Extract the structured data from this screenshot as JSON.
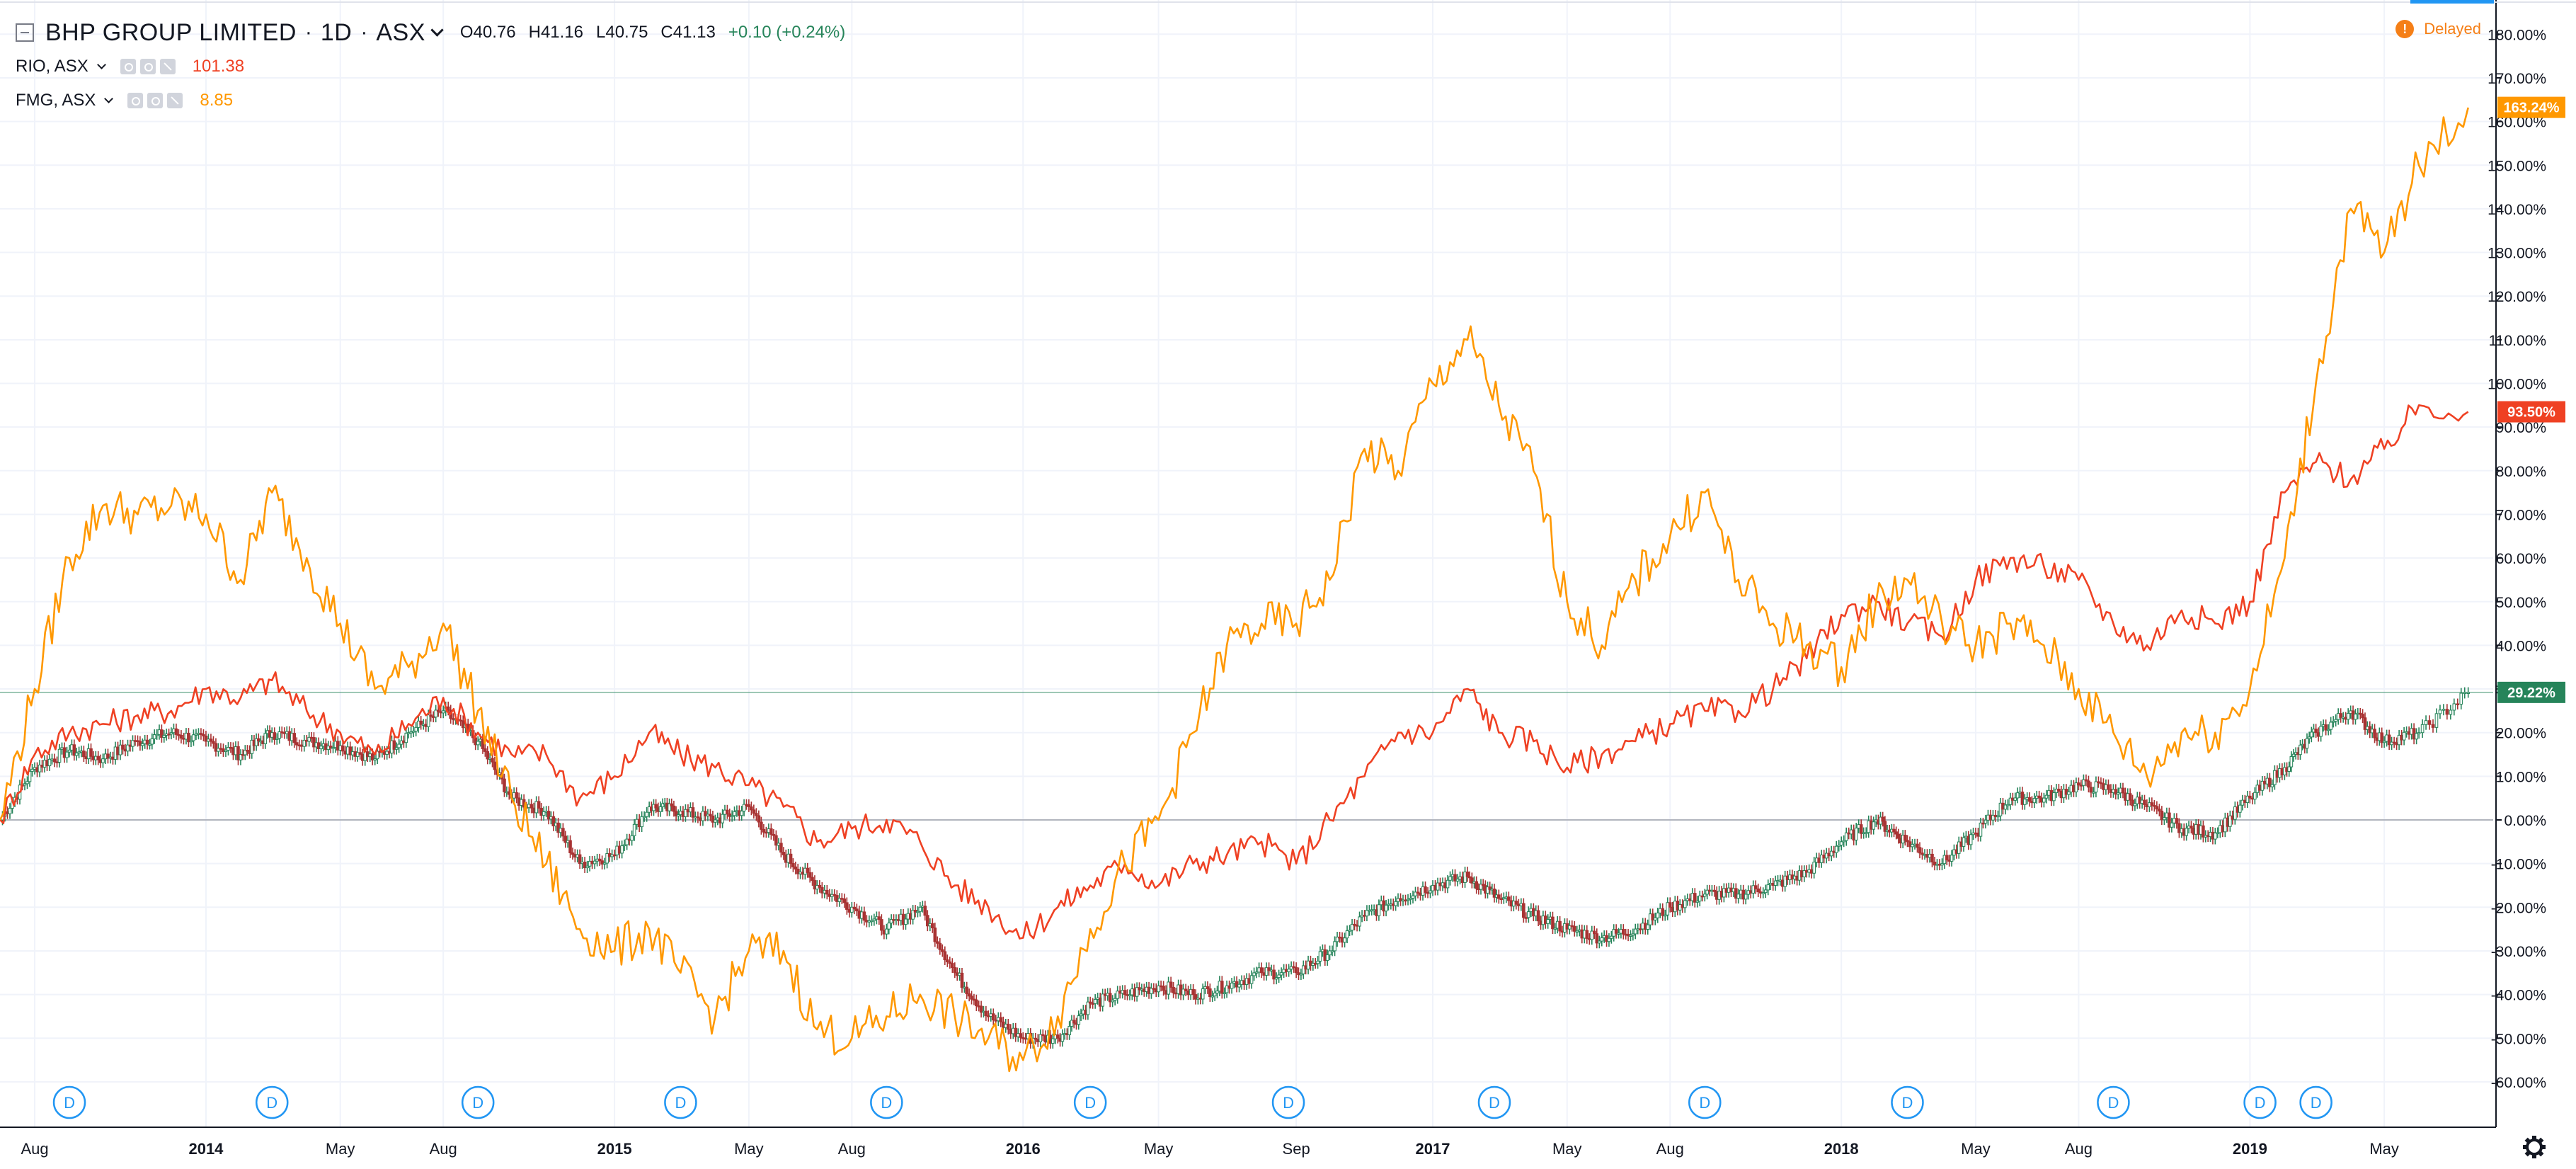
{
  "header": {
    "symbol_title": "BHP GROUP LIMITED",
    "interval": "1D",
    "exchange": "ASX",
    "open": "O40.76",
    "high": "H41.16",
    "low": "L40.75",
    "close": "C41.13",
    "change": "+0.10 (+0.24%)"
  },
  "comparisons": [
    {
      "label": "RIO, ASX",
      "value": "101.38",
      "color": "#ef4123"
    },
    {
      "label": "FMG, ASX",
      "value": "8.85",
      "color": "#ff9800"
    }
  ],
  "status": {
    "delayed_label": "Delayed",
    "delayed_icon": "!"
  },
  "colors": {
    "bhp": "#26845a",
    "bhp_down": "#a83232",
    "rio": "#ef4123",
    "fmg": "#ff9800",
    "event_marker": "#2196f3",
    "grid": "#f0f3fa"
  },
  "event_marker_label": "D",
  "chart_data": {
    "type": "line",
    "y_axis": {
      "unit": "%",
      "range": [
        -65,
        185
      ],
      "ticks": [
        "180.00%",
        "170.00%",
        "160.00%",
        "150.00%",
        "140.00%",
        "130.00%",
        "120.00%",
        "110.00%",
        "100.00%",
        "90.00%",
        "80.00%",
        "70.00%",
        "60.00%",
        "50.00%",
        "40.00%",
        "30.00%",
        "20.00%",
        "10.00%",
        "0.00%",
        "-10.00%",
        "-20.00%",
        "-30.00%",
        "-40.00%",
        "-50.00%",
        "-60.00%"
      ]
    },
    "x_axis": {
      "range": [
        "2013-07-01",
        "2019-07-31"
      ],
      "ticks": [
        {
          "date": "2013-08-01",
          "label": "Aug"
        },
        {
          "date": "2014-01-01",
          "label": "2014"
        },
        {
          "date": "2014-05-01",
          "label": "May"
        },
        {
          "date": "2014-08-01",
          "label": "Aug"
        },
        {
          "date": "2015-01-01",
          "label": "2015"
        },
        {
          "date": "2015-05-01",
          "label": "May"
        },
        {
          "date": "2015-08-01",
          "label": "Aug"
        },
        {
          "date": "2016-01-01",
          "label": "2016"
        },
        {
          "date": "2016-05-01",
          "label": "May"
        },
        {
          "date": "2016-09-01",
          "label": "Sep"
        },
        {
          "date": "2017-01-01",
          "label": "2017"
        },
        {
          "date": "2017-05-01",
          "label": "May"
        },
        {
          "date": "2017-08-01",
          "label": "Aug"
        },
        {
          "date": "2018-01-01",
          "label": "2018"
        },
        {
          "date": "2018-05-01",
          "label": "May"
        },
        {
          "date": "2018-08-01",
          "label": "Aug"
        },
        {
          "date": "2019-01-01",
          "label": "2019"
        },
        {
          "date": "2019-05-01",
          "label": "May"
        }
      ]
    },
    "grid": true,
    "legend": "top-left",
    "zero_line": 0,
    "series": [
      {
        "name": "BHP GROUP LIMITED",
        "style": "candles",
        "last_label": "29.22%",
        "last_value": 29.22,
        "points": [
          [
            "2013-07-01",
            0
          ],
          [
            "2013-08-01",
            12
          ],
          [
            "2013-09-01",
            16
          ],
          [
            "2013-10-01",
            14
          ],
          [
            "2013-11-01",
            18
          ],
          [
            "2013-12-01",
            20
          ],
          [
            "2014-01-01",
            18
          ],
          [
            "2014-02-01",
            15
          ],
          [
            "2014-03-01",
            20
          ],
          [
            "2014-04-01",
            18
          ],
          [
            "2014-05-01",
            17
          ],
          [
            "2014-06-01",
            14
          ],
          [
            "2014-07-01",
            20
          ],
          [
            "2014-08-01",
            25
          ],
          [
            "2014-09-01",
            18
          ],
          [
            "2014-10-01",
            5
          ],
          [
            "2014-11-01",
            2
          ],
          [
            "2014-12-01",
            -10
          ],
          [
            "2015-01-01",
            -8
          ],
          [
            "2015-02-01",
            3
          ],
          [
            "2015-03-01",
            2
          ],
          [
            "2015-04-01",
            0
          ],
          [
            "2015-05-01",
            3
          ],
          [
            "2015-06-01",
            -8
          ],
          [
            "2015-07-01",
            -15
          ],
          [
            "2015-08-01",
            -20
          ],
          [
            "2015-09-01",
            -25
          ],
          [
            "2015-10-01",
            -20
          ],
          [
            "2015-11-01",
            -35
          ],
          [
            "2015-12-01",
            -45
          ],
          [
            "2016-01-01",
            -50
          ],
          [
            "2016-02-01",
            -50
          ],
          [
            "2016-03-01",
            -42
          ],
          [
            "2016-04-01",
            -40
          ],
          [
            "2016-05-01",
            -38
          ],
          [
            "2016-06-01",
            -40
          ],
          [
            "2016-07-01",
            -38
          ],
          [
            "2016-08-01",
            -35
          ],
          [
            "2016-09-01",
            -35
          ],
          [
            "2016-10-01",
            -30
          ],
          [
            "2016-11-01",
            -22
          ],
          [
            "2016-12-01",
            -18
          ],
          [
            "2017-01-01",
            -15
          ],
          [
            "2017-02-01",
            -13
          ],
          [
            "2017-03-01",
            -18
          ],
          [
            "2017-04-01",
            -22
          ],
          [
            "2017-05-01",
            -25
          ],
          [
            "2017-06-01",
            -27
          ],
          [
            "2017-07-01",
            -25
          ],
          [
            "2017-08-01",
            -20
          ],
          [
            "2017-09-01",
            -17
          ],
          [
            "2017-10-01",
            -17
          ],
          [
            "2017-11-01",
            -15
          ],
          [
            "2017-12-01",
            -12
          ],
          [
            "2018-01-01",
            -5
          ],
          [
            "2018-02-01",
            0
          ],
          [
            "2018-03-01",
            -5
          ],
          [
            "2018-04-01",
            -10
          ],
          [
            "2018-05-01",
            -3
          ],
          [
            "2018-06-01",
            5
          ],
          [
            "2018-07-01",
            5
          ],
          [
            "2018-08-01",
            8
          ],
          [
            "2018-09-01",
            7
          ],
          [
            "2018-10-01",
            3
          ],
          [
            "2018-11-01",
            -2
          ],
          [
            "2018-12-01",
            -3
          ],
          [
            "2019-01-01",
            5
          ],
          [
            "2019-02-01",
            12
          ],
          [
            "2019-03-01",
            20
          ],
          [
            "2019-04-01",
            25
          ],
          [
            "2019-05-01",
            18
          ],
          [
            "2019-06-01",
            20
          ],
          [
            "2019-07-15",
            29.2
          ]
        ]
      },
      {
        "name": "RIO, ASX",
        "style": "line",
        "last_label": "93.50%",
        "last_value": 93.5,
        "points": [
          [
            "2013-07-01",
            0
          ],
          [
            "2013-08-01",
            15
          ],
          [
            "2013-09-01",
            20
          ],
          [
            "2013-10-01",
            22
          ],
          [
            "2013-11-01",
            24
          ],
          [
            "2013-12-01",
            25
          ],
          [
            "2014-01-01",
            30
          ],
          [
            "2014-02-01",
            28
          ],
          [
            "2014-03-01",
            32
          ],
          [
            "2014-04-01",
            25
          ],
          [
            "2014-05-01",
            20
          ],
          [
            "2014-06-01",
            15
          ],
          [
            "2014-07-01",
            22
          ],
          [
            "2014-08-01",
            28
          ],
          [
            "2014-09-01",
            20
          ],
          [
            "2014-10-01",
            15
          ],
          [
            "2014-11-01",
            15
          ],
          [
            "2014-12-01",
            5
          ],
          [
            "2015-01-01",
            10
          ],
          [
            "2015-02-01",
            20
          ],
          [
            "2015-03-01",
            15
          ],
          [
            "2015-04-01",
            12
          ],
          [
            "2015-05-01",
            8
          ],
          [
            "2015-06-01",
            3
          ],
          [
            "2015-07-01",
            -5
          ],
          [
            "2015-08-01",
            -2
          ],
          [
            "2015-09-01",
            0
          ],
          [
            "2015-10-01",
            -5
          ],
          [
            "2015-11-01",
            -15
          ],
          [
            "2015-12-01",
            -20
          ],
          [
            "2016-01-01",
            -27
          ],
          [
            "2016-02-01",
            -20
          ],
          [
            "2016-03-01",
            -15
          ],
          [
            "2016-04-01",
            -10
          ],
          [
            "2016-05-01",
            -15
          ],
          [
            "2016-06-01",
            -10
          ],
          [
            "2016-07-01",
            -8
          ],
          [
            "2016-08-01",
            -5
          ],
          [
            "2016-09-01",
            -10
          ],
          [
            "2016-10-01",
            0
          ],
          [
            "2016-11-01",
            10
          ],
          [
            "2016-12-01",
            20
          ],
          [
            "2017-01-01",
            20
          ],
          [
            "2017-02-01",
            30
          ],
          [
            "2017-03-01",
            20
          ],
          [
            "2017-04-01",
            18
          ],
          [
            "2017-05-01",
            12
          ],
          [
            "2017-06-01",
            15
          ],
          [
            "2017-07-01",
            18
          ],
          [
            "2017-08-01",
            22
          ],
          [
            "2017-09-01",
            25
          ],
          [
            "2017-10-01",
            25
          ],
          [
            "2017-11-01",
            30
          ],
          [
            "2017-12-01",
            37
          ],
          [
            "2018-01-01",
            47
          ],
          [
            "2018-02-01",
            50
          ],
          [
            "2018-03-01",
            45
          ],
          [
            "2018-04-01",
            42
          ],
          [
            "2018-05-01",
            55
          ],
          [
            "2018-06-01",
            60
          ],
          [
            "2018-07-01",
            58
          ],
          [
            "2018-08-01",
            55
          ],
          [
            "2018-09-01",
            45
          ],
          [
            "2018-10-01",
            40
          ],
          [
            "2018-11-01",
            48
          ],
          [
            "2018-12-01",
            45
          ],
          [
            "2019-01-01",
            50
          ],
          [
            "2019-02-01",
            75
          ],
          [
            "2019-03-01",
            82
          ],
          [
            "2019-04-01",
            78
          ],
          [
            "2019-05-01",
            85
          ],
          [
            "2019-06-01",
            95
          ],
          [
            "2019-07-15",
            93.5
          ]
        ]
      },
      {
        "name": "FMG, ASX",
        "style": "line",
        "last_label": "163.24%",
        "last_value": 163.24,
        "points": [
          [
            "2013-07-01",
            0
          ],
          [
            "2013-08-01",
            30
          ],
          [
            "2013-09-01",
            60
          ],
          [
            "2013-10-01",
            72
          ],
          [
            "2013-11-01",
            70
          ],
          [
            "2013-12-01",
            72
          ],
          [
            "2014-01-01",
            70
          ],
          [
            "2014-02-01",
            55
          ],
          [
            "2014-03-01",
            75
          ],
          [
            "2014-04-01",
            60
          ],
          [
            "2014-05-01",
            45
          ],
          [
            "2014-06-01",
            30
          ],
          [
            "2014-07-01",
            35
          ],
          [
            "2014-08-01",
            45
          ],
          [
            "2014-09-01",
            25
          ],
          [
            "2014-10-01",
            5
          ],
          [
            "2014-11-01",
            -10
          ],
          [
            "2014-12-01",
            -25
          ],
          [
            "2015-01-01",
            -30
          ],
          [
            "2015-02-01",
            -25
          ],
          [
            "2015-03-01",
            -35
          ],
          [
            "2015-04-01",
            -45
          ],
          [
            "2015-05-01",
            -30
          ],
          [
            "2015-06-01",
            -30
          ],
          [
            "2015-07-01",
            -48
          ],
          [
            "2015-08-01",
            -50
          ],
          [
            "2015-09-01",
            -45
          ],
          [
            "2015-10-01",
            -40
          ],
          [
            "2015-11-01",
            -45
          ],
          [
            "2015-12-01",
            -50
          ],
          [
            "2016-01-01",
            -55
          ],
          [
            "2016-02-01",
            -45
          ],
          [
            "2016-03-01",
            -25
          ],
          [
            "2016-04-01",
            -10
          ],
          [
            "2016-05-01",
            0
          ],
          [
            "2016-06-01",
            20
          ],
          [
            "2016-07-01",
            40
          ],
          [
            "2016-08-01",
            45
          ],
          [
            "2016-09-01",
            45
          ],
          [
            "2016-10-01",
            55
          ],
          [
            "2016-11-01",
            85
          ],
          [
            "2016-12-01",
            80
          ],
          [
            "2017-01-01",
            100
          ],
          [
            "2017-02-01",
            110
          ],
          [
            "2017-03-01",
            95
          ],
          [
            "2017-04-01",
            80
          ],
          [
            "2017-05-01",
            50
          ],
          [
            "2017-06-01",
            40
          ],
          [
            "2017-07-01",
            55
          ],
          [
            "2017-08-01",
            65
          ],
          [
            "2017-09-01",
            75
          ],
          [
            "2017-10-01",
            55
          ],
          [
            "2017-11-01",
            45
          ],
          [
            "2017-12-01",
            40
          ],
          [
            "2018-01-01",
            35
          ],
          [
            "2018-02-01",
            50
          ],
          [
            "2018-03-01",
            55
          ],
          [
            "2018-04-01",
            45
          ],
          [
            "2018-05-01",
            40
          ],
          [
            "2018-06-01",
            45
          ],
          [
            "2018-07-01",
            40
          ],
          [
            "2018-08-01",
            30
          ],
          [
            "2018-09-01",
            20
          ],
          [
            "2018-10-01",
            10
          ],
          [
            "2018-11-01",
            20
          ],
          [
            "2018-12-01",
            20
          ],
          [
            "2019-01-01",
            30
          ],
          [
            "2019-02-01",
            60
          ],
          [
            "2019-03-01",
            100
          ],
          [
            "2019-04-01",
            140
          ],
          [
            "2019-05-01",
            130
          ],
          [
            "2019-06-01",
            150
          ],
          [
            "2019-07-15",
            163.2
          ]
        ]
      }
    ],
    "events": [
      {
        "date": "2013-09-01",
        "label": "D"
      },
      {
        "date": "2014-03-01",
        "label": "D"
      },
      {
        "date": "2014-09-01",
        "label": "D"
      },
      {
        "date": "2015-03-01",
        "label": "D"
      },
      {
        "date": "2015-09-01",
        "label": "D"
      },
      {
        "date": "2016-03-01",
        "label": "D"
      },
      {
        "date": "2016-08-25",
        "label": "D"
      },
      {
        "date": "2017-02-25",
        "label": "D"
      },
      {
        "date": "2017-09-01",
        "label": "D"
      },
      {
        "date": "2018-03-01",
        "label": "D"
      },
      {
        "date": "2018-09-01",
        "label": "D"
      },
      {
        "date": "2019-01-10",
        "label": "D"
      },
      {
        "date": "2019-03-01",
        "label": "D"
      }
    ]
  }
}
